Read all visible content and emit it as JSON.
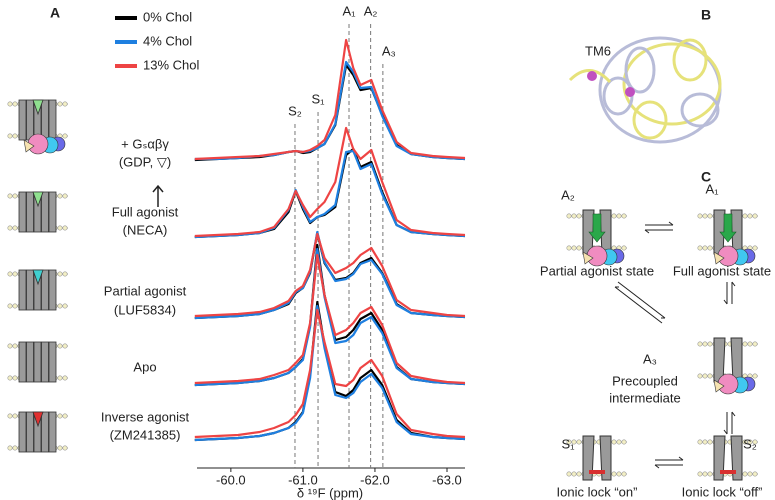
{
  "panel_labels": [
    "A",
    "B",
    "C"
  ],
  "chart_data": {
    "type": "line",
    "xlabel": "δ ¹⁹F (ppm)",
    "xlim": [
      -59.53,
      -63.25
    ],
    "xticks": [
      {
        "value": -60,
        "label": "-60.0"
      },
      {
        "value": -61,
        "label": "-61.0"
      },
      {
        "value": -62,
        "label": "-62.0"
      },
      {
        "value": -63,
        "label": "-63.0"
      }
    ],
    "series": [
      {
        "name": "0% Chol",
        "color": "#000000"
      },
      {
        "name": "4% Chol",
        "color": "#1e7fe0"
      },
      {
        "name": "13% Chol",
        "color": "#ee4444"
      }
    ],
    "peaks": [
      {
        "label": "S₂",
        "x": -60.89
      },
      {
        "label": "S₁",
        "x": -61.21
      },
      {
        "label": "A₁",
        "x": -61.64
      },
      {
        "label": "A₂",
        "x": -61.94
      },
      {
        "label": "A₃",
        "x": -62.11
      }
    ],
    "x": [
      -59.5,
      -59.8,
      -60.1,
      -60.4,
      -60.6,
      -60.8,
      -60.9,
      -61.0,
      -61.1,
      -61.2,
      -61.3,
      -61.45,
      -61.6,
      -61.7,
      -61.8,
      -61.95,
      -62.1,
      -62.3,
      -62.5,
      -62.8,
      -63.0,
      -63.25
    ],
    "traces": [
      {
        "label": [
          "+ Gₛαβγ",
          "(GDP, ▽)"
        ],
        "values": [
          [
            0.0,
            0.01,
            0.02,
            0.03,
            0.05,
            0.08,
            0.09,
            0.07,
            0.08,
            0.12,
            0.16,
            0.35,
            0.95,
            0.85,
            0.7,
            0.72,
            0.45,
            0.15,
            0.06,
            0.03,
            0.02,
            0.01
          ],
          [
            0.01,
            0.01,
            0.02,
            0.04,
            0.05,
            0.08,
            0.09,
            0.08,
            0.09,
            0.12,
            0.16,
            0.36,
            0.98,
            0.88,
            0.72,
            0.73,
            0.44,
            0.14,
            0.06,
            0.03,
            0.02,
            0.01
          ],
          [
            0.01,
            0.02,
            0.03,
            0.04,
            0.06,
            0.08,
            0.09,
            0.08,
            0.1,
            0.14,
            0.2,
            0.45,
            1.2,
            0.92,
            0.75,
            0.8,
            0.5,
            0.18,
            0.07,
            0.04,
            0.03,
            0.02
          ]
        ]
      },
      {
        "label": [
          "Full agonist",
          "(NECA)"
        ],
        "values": [
          [
            0.0,
            0.01,
            0.02,
            0.04,
            0.08,
            0.25,
            0.46,
            0.28,
            0.14,
            0.2,
            0.22,
            0.3,
            0.82,
            0.88,
            0.7,
            0.75,
            0.45,
            0.12,
            0.05,
            0.03,
            0.02,
            0.01
          ],
          [
            0.0,
            0.01,
            0.02,
            0.04,
            0.09,
            0.27,
            0.47,
            0.3,
            0.15,
            0.2,
            0.23,
            0.32,
            0.85,
            0.86,
            0.68,
            0.73,
            0.43,
            0.12,
            0.05,
            0.03,
            0.02,
            0.01
          ],
          [
            0.01,
            0.02,
            0.03,
            0.05,
            0.1,
            0.28,
            0.46,
            0.32,
            0.2,
            0.28,
            0.35,
            0.55,
            1.09,
            0.88,
            0.78,
            0.87,
            0.55,
            0.17,
            0.07,
            0.04,
            0.03,
            0.02
          ]
        ]
      },
      {
        "label": [
          "Partial agonist",
          "(LUF5834)"
        ],
        "values": [
          [
            0.0,
            0.01,
            0.02,
            0.04,
            0.08,
            0.14,
            0.25,
            0.3,
            0.45,
            0.85,
            0.55,
            0.38,
            0.4,
            0.45,
            0.55,
            0.6,
            0.45,
            0.14,
            0.05,
            0.03,
            0.02,
            0.01
          ],
          [
            0.0,
            0.01,
            0.02,
            0.04,
            0.08,
            0.15,
            0.26,
            0.3,
            0.46,
            0.86,
            0.56,
            0.37,
            0.39,
            0.44,
            0.54,
            0.58,
            0.44,
            0.13,
            0.05,
            0.03,
            0.02,
            0.01
          ],
          [
            0.02,
            0.03,
            0.04,
            0.06,
            0.1,
            0.17,
            0.27,
            0.32,
            0.48,
            0.84,
            0.6,
            0.45,
            0.5,
            0.55,
            0.63,
            0.7,
            0.52,
            0.18,
            0.08,
            0.05,
            0.03,
            0.02
          ]
        ]
      },
      {
        "label": [
          "Apo"
        ],
        "values": [
          [
            0.0,
            0.01,
            0.02,
            0.04,
            0.07,
            0.12,
            0.18,
            0.26,
            0.6,
            1.4,
            0.9,
            0.45,
            0.48,
            0.55,
            0.66,
            0.72,
            0.55,
            0.18,
            0.06,
            0.03,
            0.02,
            0.01
          ],
          [
            0.0,
            0.01,
            0.02,
            0.04,
            0.07,
            0.12,
            0.18,
            0.25,
            0.58,
            1.36,
            0.88,
            0.42,
            0.44,
            0.5,
            0.62,
            0.68,
            0.52,
            0.17,
            0.06,
            0.03,
            0.02,
            0.01
          ],
          [
            0.02,
            0.03,
            0.04,
            0.06,
            0.1,
            0.15,
            0.22,
            0.3,
            0.62,
            1.3,
            0.9,
            0.5,
            0.55,
            0.62,
            0.72,
            0.78,
            0.6,
            0.22,
            0.09,
            0.05,
            0.03,
            0.02
          ]
        ]
      },
      {
        "label": [
          "Inverse agonist",
          "(ZM241385)"
        ],
        "values": [
          [
            0.0,
            0.01,
            0.02,
            0.04,
            0.07,
            0.12,
            0.18,
            0.28,
            0.65,
            1.38,
            0.95,
            0.48,
            0.44,
            0.5,
            0.62,
            0.7,
            0.55,
            0.2,
            0.07,
            0.03,
            0.02,
            0.01
          ],
          [
            0.0,
            0.01,
            0.02,
            0.04,
            0.07,
            0.12,
            0.17,
            0.27,
            0.62,
            1.34,
            0.92,
            0.45,
            0.42,
            0.47,
            0.58,
            0.66,
            0.52,
            0.18,
            0.06,
            0.03,
            0.02,
            0.01
          ],
          [
            0.03,
            0.04,
            0.05,
            0.08,
            0.12,
            0.18,
            0.25,
            0.36,
            0.7,
            1.3,
            0.98,
            0.56,
            0.54,
            0.6,
            0.72,
            0.8,
            0.64,
            0.26,
            0.1,
            0.06,
            0.04,
            0.03
          ]
        ]
      }
    ]
  },
  "panel_b": {
    "label": "TM6"
  },
  "panel_c": {
    "states": [
      {
        "label": "A₂",
        "caption": [
          "Partial agonist state"
        ]
      },
      {
        "label": "A₁",
        "caption": [
          "Full agonist state"
        ]
      },
      {
        "label": "A₃",
        "caption": [
          "Precoupled",
          "intermediate"
        ]
      },
      {
        "label": "S₁",
        "caption": [
          "Ionic lock “on”"
        ]
      },
      {
        "label": "S₂",
        "caption": [
          "Ionic lock “off”"
        ]
      }
    ]
  }
}
